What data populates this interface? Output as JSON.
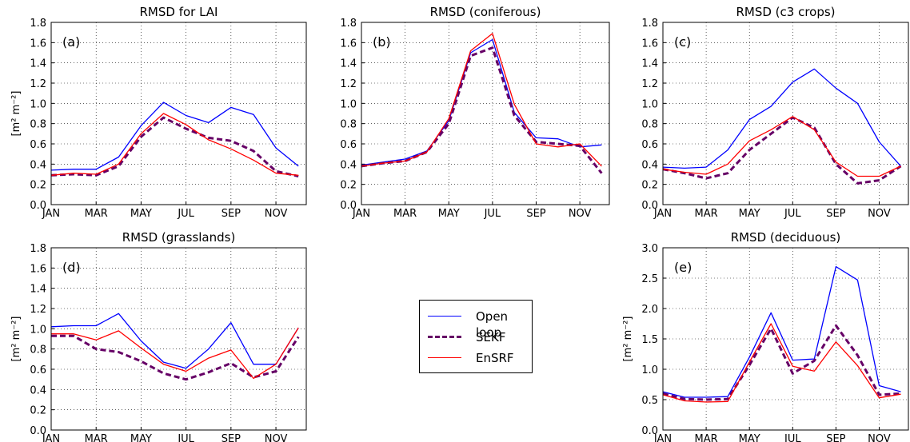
{
  "chart_data": [
    {
      "type": "line",
      "title": "RMSD for LAI",
      "panel_label": "(a)",
      "ylabel": "[m² m⁻²]",
      "ylim": [
        0,
        1.8
      ],
      "yticks": [
        "0.0",
        "0.2",
        "0.4",
        "0.6",
        "0.8",
        "1.0",
        "1.2",
        "1.4",
        "1.6",
        "1.8"
      ],
      "xticks": [
        "JAN",
        "MAR",
        "MAY",
        "JUL",
        "SEP",
        "NOV"
      ],
      "x": [
        1,
        2,
        3,
        4,
        5,
        6,
        7,
        8,
        9,
        10,
        11,
        12
      ],
      "series": [
        {
          "name": "Open loop",
          "values": [
            0.34,
            0.35,
            0.35,
            0.47,
            0.78,
            1.01,
            0.88,
            0.81,
            0.96,
            0.89,
            0.56,
            0.38
          ]
        },
        {
          "name": "SEKF",
          "values": [
            0.29,
            0.3,
            0.29,
            0.38,
            0.67,
            0.86,
            0.75,
            0.66,
            0.63,
            0.53,
            0.33,
            0.28
          ]
        },
        {
          "name": "EnSRF",
          "values": [
            0.29,
            0.31,
            0.3,
            0.4,
            0.7,
            0.9,
            0.79,
            0.64,
            0.55,
            0.44,
            0.31,
            0.29
          ]
        }
      ]
    },
    {
      "type": "line",
      "title": "RMSD (coniferous)",
      "panel_label": "(b)",
      "ylabel": "",
      "ylim": [
        0,
        1.8
      ],
      "yticks": [
        "0.0",
        "0.2",
        "0.4",
        "0.6",
        "0.8",
        "1.0",
        "1.2",
        "1.4",
        "1.6",
        "1.8"
      ],
      "xticks": [
        "JAN",
        "MAR",
        "MAY",
        "JUL",
        "SEP",
        "NOV"
      ],
      "x": [
        1,
        2,
        3,
        4,
        5,
        6,
        7,
        8,
        9,
        10,
        11,
        12
      ],
      "series": [
        {
          "name": "Open loop",
          "values": [
            0.39,
            0.42,
            0.45,
            0.53,
            0.83,
            1.5,
            1.63,
            0.91,
            0.66,
            0.65,
            0.57,
            0.59
          ]
        },
        {
          "name": "SEKF",
          "values": [
            0.38,
            0.41,
            0.43,
            0.52,
            0.8,
            1.47,
            1.55,
            0.88,
            0.62,
            0.6,
            0.58,
            0.31
          ]
        },
        {
          "name": "EnSRF",
          "values": [
            0.38,
            0.41,
            0.43,
            0.52,
            0.85,
            1.52,
            1.69,
            0.99,
            0.6,
            0.57,
            0.6,
            0.38
          ]
        }
      ]
    },
    {
      "type": "line",
      "title": "RMSD (c3 crops)",
      "panel_label": "(c)",
      "ylabel": "",
      "ylim": [
        0,
        1.8
      ],
      "yticks": [
        "0.0",
        "0.2",
        "0.4",
        "0.6",
        "0.8",
        "1.0",
        "1.2",
        "1.4",
        "1.6",
        "1.8"
      ],
      "xticks": [
        "JAN",
        "MAR",
        "MAY",
        "JUL",
        "SEP",
        "NOV"
      ],
      "x": [
        1,
        2,
        3,
        4,
        5,
        6,
        7,
        8,
        9,
        10,
        11,
        12
      ],
      "series": [
        {
          "name": "Open loop",
          "values": [
            0.37,
            0.36,
            0.37,
            0.54,
            0.84,
            0.97,
            1.21,
            1.34,
            1.15,
            1.0,
            0.62,
            0.38
          ]
        },
        {
          "name": "SEKF",
          "values": [
            0.35,
            0.31,
            0.26,
            0.31,
            0.54,
            0.7,
            0.86,
            0.76,
            0.4,
            0.21,
            0.24,
            0.38
          ]
        },
        {
          "name": "EnSRF",
          "values": [
            0.35,
            0.32,
            0.3,
            0.4,
            0.63,
            0.74,
            0.87,
            0.74,
            0.42,
            0.28,
            0.28,
            0.38
          ]
        }
      ]
    },
    {
      "type": "line",
      "title": "RMSD (grasslands)",
      "panel_label": "(d)",
      "ylabel": "[m² m⁻²]",
      "ylim": [
        0,
        1.8
      ],
      "yticks": [
        "0.0",
        "0.2",
        "0.4",
        "0.6",
        "0.8",
        "1.0",
        "1.2",
        "1.4",
        "1.6",
        "1.8"
      ],
      "xticks": [
        "JAN",
        "MAR",
        "MAY",
        "JUL",
        "SEP",
        "NOV"
      ],
      "x": [
        1,
        2,
        3,
        4,
        5,
        6,
        7,
        8,
        9,
        10,
        11,
        12
      ],
      "series": [
        {
          "name": "Open loop",
          "values": [
            1.02,
            1.03,
            1.03,
            1.15,
            0.88,
            0.67,
            0.61,
            0.8,
            1.06,
            0.65,
            0.65,
            1.01
          ]
        },
        {
          "name": "SEKF",
          "values": [
            0.93,
            0.93,
            0.8,
            0.77,
            0.68,
            0.56,
            0.5,
            0.57,
            0.66,
            0.52,
            0.58,
            0.92
          ]
        },
        {
          "name": "EnSRF",
          "values": [
            0.95,
            0.95,
            0.89,
            0.98,
            0.81,
            0.65,
            0.58,
            0.71,
            0.79,
            0.51,
            0.65,
            1.01
          ]
        }
      ]
    },
    {
      "type": "line",
      "title": "RMSD (deciduous)",
      "panel_label": "(e)",
      "ylabel": "[m² m⁻²]",
      "ylim": [
        0,
        3.0
      ],
      "yticks": [
        "0.0",
        "0.5",
        "1.0",
        "1.5",
        "2.0",
        "2.5",
        "3.0"
      ],
      "xticks": [
        "JAN",
        "MAR",
        "MAY",
        "JUL",
        "SEP",
        "NOV"
      ],
      "x": [
        1,
        2,
        3,
        4,
        5,
        6,
        7,
        8,
        9,
        10,
        11,
        12
      ],
      "series": [
        {
          "name": "Open loop",
          "values": [
            0.63,
            0.54,
            0.54,
            0.55,
            1.2,
            1.93,
            1.15,
            1.17,
            2.69,
            2.47,
            0.73,
            0.63
          ]
        },
        {
          "name": "SEKF",
          "values": [
            0.6,
            0.51,
            0.5,
            0.51,
            1.07,
            1.67,
            0.93,
            1.14,
            1.72,
            1.23,
            0.58,
            0.6
          ]
        },
        {
          "name": "EnSRF",
          "values": [
            0.58,
            0.48,
            0.46,
            0.47,
            1.12,
            1.75,
            1.05,
            0.97,
            1.45,
            1.06,
            0.53,
            0.59
          ]
        }
      ]
    }
  ],
  "legend": {
    "items": [
      {
        "label": "Open loop",
        "color": "#0000ff",
        "style": "solid"
      },
      {
        "label": "SEKF",
        "color": "#660066",
        "style": "dashed"
      },
      {
        "label": "EnSRF",
        "color": "#ff0000",
        "style": "solid"
      }
    ]
  }
}
